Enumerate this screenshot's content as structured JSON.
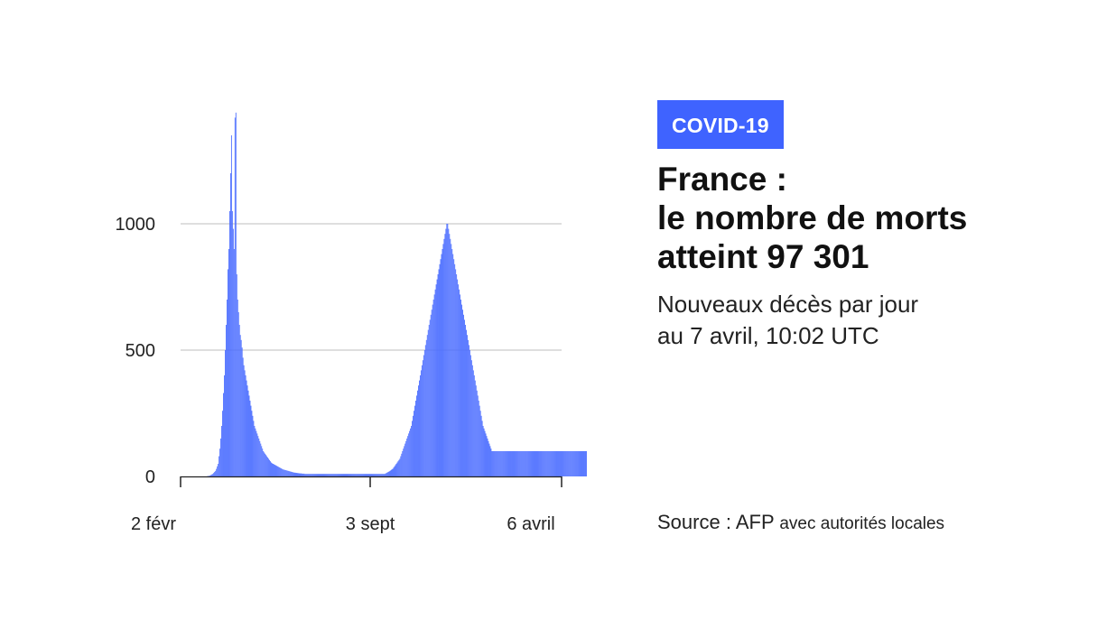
{
  "badge": "COVID-19",
  "title_lines": [
    "France :",
    "le nombre de morts",
    "atteint 97 301"
  ],
  "subtitle_lines": [
    "Nouveaux décès par jour",
    "au 7 avril, 10:02 UTC"
  ],
  "source": {
    "main": "Source : AFP",
    "detail": "avec autorités locales"
  },
  "colors": {
    "bar": "#4a6cff",
    "badge": "#3f63ff",
    "grid": "#bdbdbd",
    "axis": "#222222"
  },
  "chart_data": {
    "type": "bar",
    "title": "France : le nombre de morts atteint 97 301",
    "ylabel": "Nouveaux décès par jour",
    "ylim": [
      0,
      1450
    ],
    "yticks": [
      0,
      500,
      1000
    ],
    "xtick_labels": [
      "2 févr",
      "3 sept",
      "6 avril"
    ],
    "xtick_day_index": [
      0,
      214,
      430
    ],
    "n_days": 431,
    "values": [
      0,
      0,
      0,
      0,
      0,
      0,
      0,
      0,
      0,
      0,
      0,
      0,
      0,
      0,
      0,
      0,
      0,
      0,
      0,
      0,
      0,
      0,
      0,
      0,
      0,
      0,
      0,
      0,
      0,
      0,
      1,
      2,
      2,
      4,
      6,
      8,
      10,
      14,
      18,
      22,
      30,
      40,
      50,
      80,
      110,
      150,
      200,
      260,
      330,
      400,
      500,
      600,
      700,
      820,
      900,
      1050,
      1200,
      1350,
      1050,
      980,
      900,
      1420,
      1440,
      800,
      700,
      650,
      600,
      560,
      540,
      510,
      470,
      440,
      420,
      400,
      380,
      360,
      340,
      320,
      300,
      280,
      260,
      240,
      220,
      200,
      190,
      180,
      170,
      160,
      150,
      140,
      130,
      120,
      110,
      100,
      95,
      90,
      85,
      80,
      75,
      70,
      65,
      60,
      55,
      52,
      50,
      48,
      46,
      44,
      42,
      40,
      38,
      36,
      34,
      32,
      30,
      28,
      27,
      26,
      25,
      24,
      23,
      22,
      21,
      20,
      19,
      18,
      17,
      16,
      15,
      15,
      14,
      14,
      13,
      13,
      12,
      12,
      12,
      11,
      11,
      11,
      10,
      10,
      10,
      10,
      10,
      10,
      10,
      10,
      10,
      10,
      10,
      10,
      10,
      10,
      10,
      10,
      10,
      10,
      10,
      10,
      10,
      10,
      10,
      10,
      10,
      10,
      10,
      10,
      10,
      10,
      10,
      10,
      10,
      10,
      10,
      10,
      10,
      10,
      10,
      10,
      10,
      10,
      10,
      10,
      10,
      10,
      10,
      10,
      10,
      10,
      10,
      10,
      10,
      10,
      10,
      10,
      10,
      10,
      10,
      10,
      10,
      10,
      10,
      10,
      10,
      10,
      10,
      10,
      10,
      10,
      10,
      10,
      10,
      10,
      10,
      10,
      10,
      10,
      10,
      10,
      10,
      10,
      10,
      10,
      10,
      10,
      10,
      10,
      10,
      10,
      10,
      12,
      14,
      16,
      18,
      20,
      22,
      25,
      28,
      30,
      35,
      40,
      45,
      50,
      55,
      60,
      65,
      70,
      80,
      90,
      100,
      110,
      120,
      130,
      140,
      150,
      160,
      170,
      180,
      190,
      200,
      220,
      240,
      260,
      280,
      300,
      320,
      340,
      360,
      380,
      400,
      420,
      440,
      460,
      480,
      500,
      520,
      540,
      560,
      580,
      600,
      620,
      640,
      660,
      680,
      700,
      720,
      740,
      760,
      780,
      800,
      820,
      840,
      860,
      880,
      900,
      920,
      940,
      960,
      980,
      1000,
      1000,
      980,
      960,
      940,
      920,
      900,
      880,
      860,
      840,
      820,
      800,
      780,
      760,
      740,
      720,
      700,
      680,
      660,
      640,
      620,
      600,
      580,
      560,
      540,
      520,
      500,
      480,
      460,
      440,
      420,
      400,
      380,
      360,
      340,
      320,
      300,
      280,
      260,
      240,
      220,
      200,
      190,
      180,
      170,
      160,
      150,
      140,
      130,
      120,
      110,
      100,
      100,
      100,
      100,
      100,
      100,
      100,
      100,
      100,
      100,
      100,
      100,
      100,
      100,
      100,
      100,
      100,
      100,
      100,
      100,
      100,
      100,
      100,
      100,
      100,
      100,
      100,
      100,
      100,
      100,
      100,
      100,
      100,
      100,
      100,
      100,
      100,
      100,
      100,
      100,
      100,
      100,
      100,
      100,
      100,
      100,
      100,
      100,
      100,
      100,
      100,
      100,
      100,
      100,
      100,
      100,
      100,
      100,
      100,
      100,
      100,
      100,
      100,
      100,
      100,
      100,
      100,
      100,
      100,
      100,
      100,
      100,
      100,
      100,
      100,
      100,
      100,
      100,
      100,
      100,
      100,
      100,
      100,
      100,
      100,
      100,
      100,
      100,
      100,
      100,
      100,
      100,
      100,
      100,
      100,
      100,
      100,
      100,
      100,
      100,
      100,
      100,
      100,
      100,
      100,
      100,
      100,
      100,
      100,
      100,
      100,
      100,
      100,
      100,
      100,
      100,
      100,
      100,
      100,
      100
    ]
  }
}
